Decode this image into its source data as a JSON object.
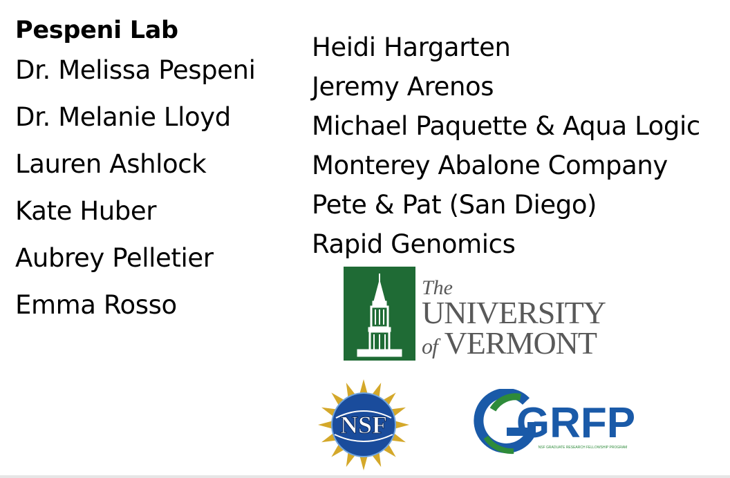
{
  "left_column": {
    "heading": "Pespeni Lab",
    "names": [
      "Dr. Melissa Pespeni",
      "Dr. Melanie Lloyd",
      "Lauren Ashlock",
      "Kate Huber",
      "Aubrey Pelletier",
      "Emma Rosso"
    ]
  },
  "right_column": {
    "names": [
      "Heidi Hargarten",
      "Jeremy Arenos",
      "Michael Paquette & Aqua Logic",
      "Monterey Abalone Company",
      "Pete & Pat (San Diego)",
      "Rapid Genomics"
    ]
  },
  "logos": {
    "uvm": {
      "line1": "The",
      "line2": "UNIVERSITY",
      "of_word": "of",
      "line3": "VERMONT",
      "color": "#1f6b35"
    },
    "nsf": {
      "text": "NSF",
      "color": "#1a4c9c"
    },
    "grfp": {
      "text": "GRFP",
      "subtitle": "NSF GRADUATE RESEARCH FELLOWSHIP PROGRAM",
      "color": "#1a5aa8",
      "accent": "#2e8b3a"
    }
  }
}
